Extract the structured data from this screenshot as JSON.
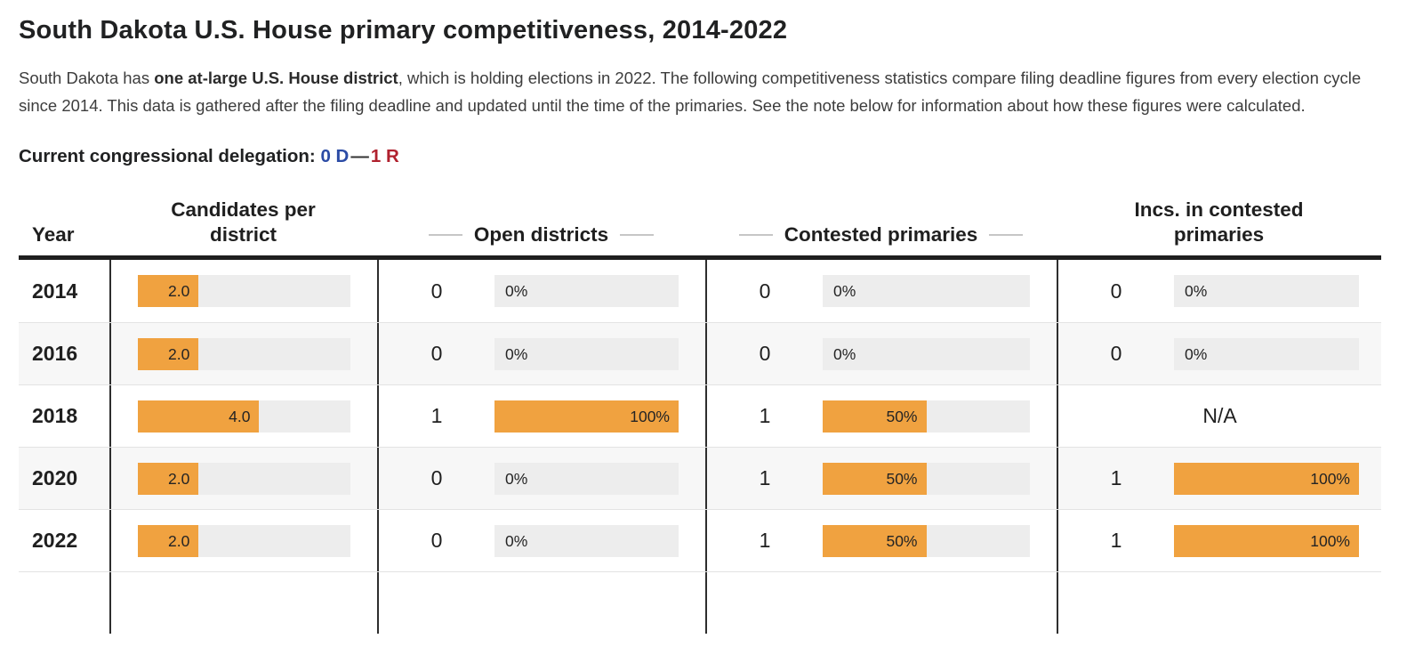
{
  "theme": {
    "bar_orange": "#f0a240",
    "bar_track": "#ededed",
    "row_alt": "#f7f7f7",
    "border_dark": "#2e2e2e",
    "dem_blue": "#2b4ba5",
    "rep_red": "#b0212e"
  },
  "page": {
    "title": "South Dakota U.S. House primary competitiveness, 2014-2022",
    "intro": {
      "pre": "South Dakota has ",
      "bold": "one at-large U.S. House district",
      "post": ", which is holding elections in 2022. The following competitiveness statistics compare filing deadline figures from every election cycle since 2014. This data is gathered after the filing deadline and updated until the time of the primaries. See the note below for information about how these figures were calculated."
    },
    "delegation": {
      "label": "Current congressional delegation:",
      "dem": "0 D",
      "separator": "—",
      "rep": "1 R"
    }
  },
  "table": {
    "headers": {
      "year": "Year",
      "candidates": "Candidates per district",
      "open": "Open districts",
      "contested": "Contested primaries",
      "incs": "Incs. in contested primaries"
    },
    "rows": [
      {
        "year": "2014",
        "candidates": {
          "label": "2.0",
          "pct": 28.6
        },
        "open": {
          "count": "0",
          "label": "0%",
          "pct": 0
        },
        "contested": {
          "count": "0",
          "label": "0%",
          "pct": 0
        },
        "incs": {
          "count": "0",
          "label": "0%",
          "pct": 0
        }
      },
      {
        "year": "2016",
        "candidates": {
          "label": "2.0",
          "pct": 28.6
        },
        "open": {
          "count": "0",
          "label": "0%",
          "pct": 0
        },
        "contested": {
          "count": "0",
          "label": "0%",
          "pct": 0
        },
        "incs": {
          "count": "0",
          "label": "0%",
          "pct": 0
        }
      },
      {
        "year": "2018",
        "candidates": {
          "label": "4.0",
          "pct": 57.1
        },
        "open": {
          "count": "1",
          "label": "100%",
          "pct": 100
        },
        "contested": {
          "count": "1",
          "label": "50%",
          "pct": 50
        },
        "incs": {
          "na": "N/A"
        }
      },
      {
        "year": "2020",
        "candidates": {
          "label": "2.0",
          "pct": 28.6
        },
        "open": {
          "count": "0",
          "label": "0%",
          "pct": 0
        },
        "contested": {
          "count": "1",
          "label": "50%",
          "pct": 50
        },
        "incs": {
          "count": "1",
          "label": "100%",
          "pct": 100
        }
      },
      {
        "year": "2022",
        "candidates": {
          "label": "2.0",
          "pct": 28.6
        },
        "open": {
          "count": "0",
          "label": "0%",
          "pct": 0
        },
        "contested": {
          "count": "1",
          "label": "50%",
          "pct": 50
        },
        "incs": {
          "count": "1",
          "label": "100%",
          "pct": 100
        }
      }
    ]
  },
  "chart_data": {
    "type": "table",
    "title": "South Dakota U.S. House primary competitiveness, 2014-2022",
    "columns": [
      "Year",
      "Candidates per district",
      "Open districts (count)",
      "Open districts (%)",
      "Contested primaries (count)",
      "Contested primaries (%)",
      "Incs. in contested primaries (count)",
      "Incs. in contested primaries (%)"
    ],
    "rows": [
      [
        "2014",
        2.0,
        0,
        "0%",
        0,
        "0%",
        0,
        "0%"
      ],
      [
        "2016",
        2.0,
        0,
        "0%",
        0,
        "0%",
        0,
        "0%"
      ],
      [
        "2018",
        4.0,
        1,
        "100%",
        1,
        "50%",
        null,
        "N/A"
      ],
      [
        "2020",
        2.0,
        0,
        "0%",
        1,
        "50%",
        1,
        "100%"
      ],
      [
        "2022",
        2.0,
        0,
        "0%",
        1,
        "50%",
        1,
        "100%"
      ]
    ],
    "bar_color": "#f0a240",
    "legend_position": "none",
    "grid": false
  }
}
